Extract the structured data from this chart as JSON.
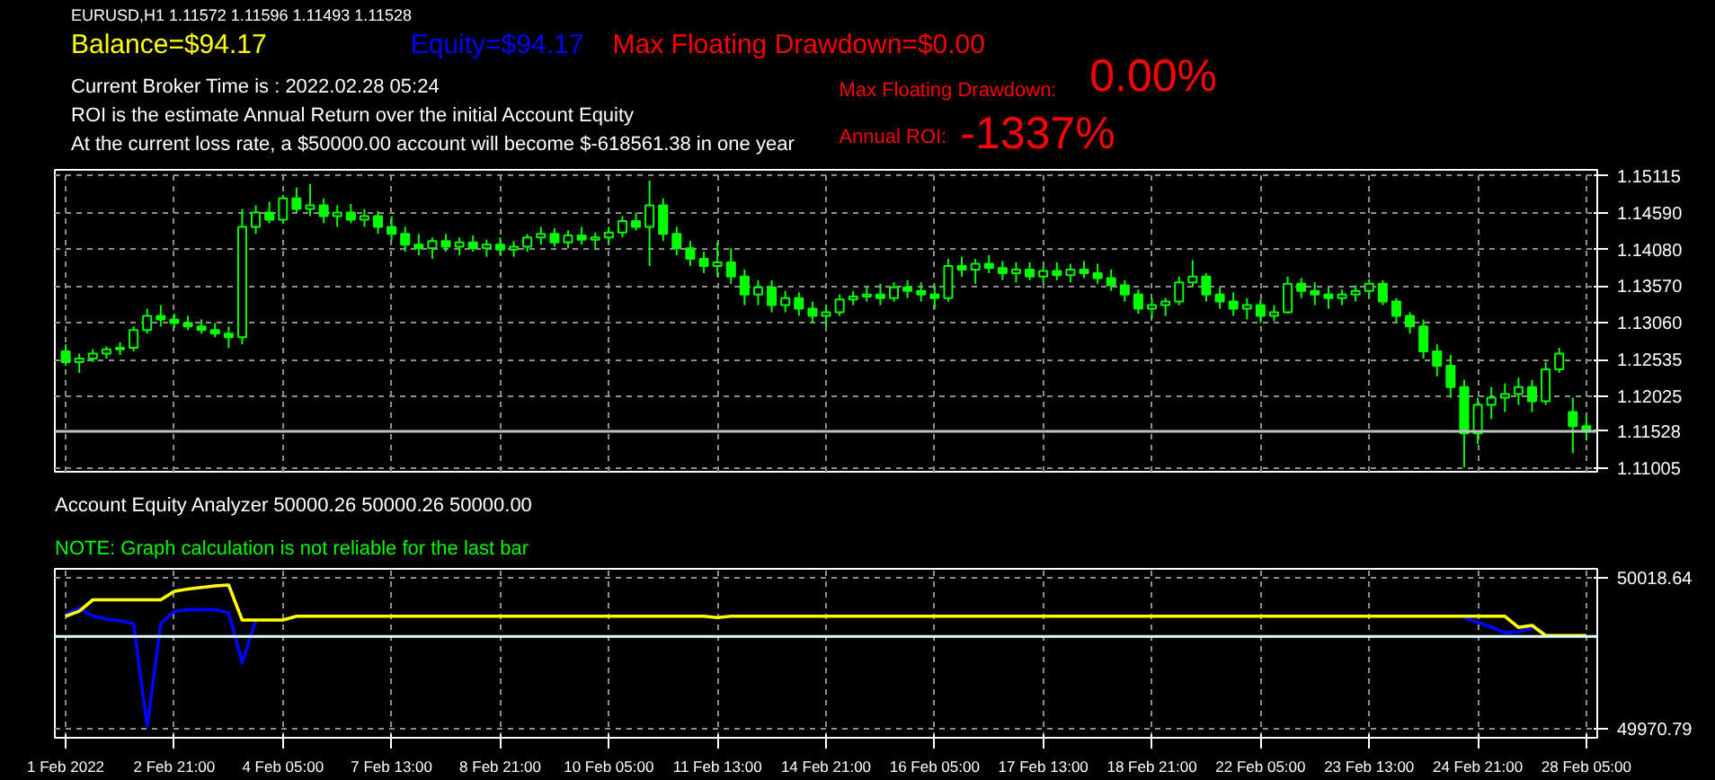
{
  "chart_data": [
    {
      "type": "candlestick",
      "color": "#00ff00",
      "ohlc": [
        [
          1.1265,
          1.1275,
          1.1245,
          1.125
        ],
        [
          1.125,
          1.1262,
          1.1235,
          1.1255
        ],
        [
          1.1255,
          1.1268,
          1.125,
          1.1262
        ],
        [
          1.1262,
          1.1272,
          1.1255,
          1.1268
        ],
        [
          1.1268,
          1.1278,
          1.126,
          1.127
        ],
        [
          1.127,
          1.13,
          1.1265,
          1.1295
        ],
        [
          1.1295,
          1.1325,
          1.129,
          1.1315
        ],
        [
          1.1315,
          1.133,
          1.13,
          1.131
        ],
        [
          1.131,
          1.1318,
          1.1298,
          1.1305
        ],
        [
          1.1305,
          1.1315,
          1.1295,
          1.13
        ],
        [
          1.13,
          1.131,
          1.129,
          1.1295
        ],
        [
          1.1295,
          1.1305,
          1.1285,
          1.129
        ],
        [
          1.129,
          1.13,
          1.127,
          1.1285
        ],
        [
          1.1285,
          1.1465,
          1.1275,
          1.144
        ],
        [
          1.144,
          1.147,
          1.143,
          1.146
        ],
        [
          1.146,
          1.1475,
          1.1445,
          1.145
        ],
        [
          1.145,
          1.1485,
          1.1445,
          1.148
        ],
        [
          1.148,
          1.1495,
          1.146,
          1.1465
        ],
        [
          1.1465,
          1.15,
          1.1455,
          1.147
        ],
        [
          1.147,
          1.148,
          1.1445,
          1.1455
        ],
        [
          1.1455,
          1.147,
          1.144,
          1.146
        ],
        [
          1.146,
          1.1472,
          1.1445,
          1.145
        ],
        [
          1.145,
          1.1465,
          1.144,
          1.1455
        ],
        [
          1.1455,
          1.1462,
          1.143,
          1.144
        ],
        [
          1.144,
          1.1455,
          1.142,
          1.143
        ],
        [
          1.143,
          1.144,
          1.1405,
          1.1415
        ],
        [
          1.1415,
          1.143,
          1.14,
          1.141
        ],
        [
          1.141,
          1.1425,
          1.1395,
          1.142
        ],
        [
          1.142,
          1.143,
          1.1405,
          1.1412
        ],
        [
          1.1412,
          1.1425,
          1.14,
          1.1418
        ],
        [
          1.1418,
          1.1428,
          1.1405,
          1.141
        ],
        [
          1.141,
          1.1422,
          1.1398,
          1.1415
        ],
        [
          1.1415,
          1.1425,
          1.14,
          1.1408
        ],
        [
          1.1408,
          1.142,
          1.1398,
          1.1412
        ],
        [
          1.1412,
          1.143,
          1.1405,
          1.1425
        ],
        [
          1.1425,
          1.144,
          1.1415,
          1.143
        ],
        [
          1.143,
          1.1438,
          1.1412,
          1.1418
        ],
        [
          1.1418,
          1.1435,
          1.141,
          1.1428
        ],
        [
          1.1428,
          1.144,
          1.1415,
          1.1422
        ],
        [
          1.1422,
          1.1432,
          1.141,
          1.1425
        ],
        [
          1.1425,
          1.144,
          1.1418,
          1.1432
        ],
        [
          1.1432,
          1.1455,
          1.1425,
          1.1448
        ],
        [
          1.1448,
          1.146,
          1.1435,
          1.144
        ],
        [
          1.144,
          1.1505,
          1.1385,
          1.147
        ],
        [
          1.147,
          1.148,
          1.142,
          1.143
        ],
        [
          1.143,
          1.144,
          1.14,
          1.141
        ],
        [
          1.141,
          1.142,
          1.1385,
          1.1395
        ],
        [
          1.1395,
          1.1405,
          1.1375,
          1.1385
        ],
        [
          1.1385,
          1.1418,
          1.137,
          1.139
        ],
        [
          1.139,
          1.141,
          1.136,
          1.137
        ],
        [
          1.137,
          1.138,
          1.133,
          1.1345
        ],
        [
          1.1345,
          1.1365,
          1.133,
          1.1355
        ],
        [
          1.1355,
          1.1365,
          1.132,
          1.133
        ],
        [
          1.133,
          1.135,
          1.132,
          1.134
        ],
        [
          1.134,
          1.1348,
          1.1315,
          1.1325
        ],
        [
          1.1325,
          1.1335,
          1.1305,
          1.1315
        ],
        [
          1.1315,
          1.133,
          1.13,
          1.132
        ],
        [
          1.132,
          1.1345,
          1.1315,
          1.1338
        ],
        [
          1.1338,
          1.135,
          1.133,
          1.1342
        ],
        [
          1.1342,
          1.1355,
          1.1335,
          1.1345
        ],
        [
          1.1345,
          1.136,
          1.133,
          1.134
        ],
        [
          1.134,
          1.1362,
          1.1335,
          1.1355
        ],
        [
          1.1355,
          1.1365,
          1.134,
          1.135
        ],
        [
          1.135,
          1.1362,
          1.1335,
          1.1345
        ],
        [
          1.1345,
          1.1358,
          1.1325,
          1.134
        ],
        [
          1.134,
          1.1395,
          1.1335,
          1.1385
        ],
        [
          1.1385,
          1.1398,
          1.137,
          1.138
        ],
        [
          1.138,
          1.1395,
          1.136,
          1.1388
        ],
        [
          1.1388,
          1.14,
          1.1375,
          1.1382
        ],
        [
          1.1382,
          1.1392,
          1.1365,
          1.1375
        ],
        [
          1.1375,
          1.139,
          1.1362,
          1.138
        ],
        [
          1.138,
          1.139,
          1.1365,
          1.137
        ],
        [
          1.137,
          1.1385,
          1.136,
          1.1378
        ],
        [
          1.1378,
          1.139,
          1.1365,
          1.1372
        ],
        [
          1.1372,
          1.1388,
          1.1362,
          1.138
        ],
        [
          1.138,
          1.1392,
          1.1368,
          1.1375
        ],
        [
          1.1375,
          1.1388,
          1.136,
          1.1368
        ],
        [
          1.1368,
          1.138,
          1.135,
          1.1358
        ],
        [
          1.1358,
          1.1365,
          1.1335,
          1.1345
        ],
        [
          1.1345,
          1.1352,
          1.1318,
          1.1325
        ],
        [
          1.1325,
          1.134,
          1.1312,
          1.133
        ],
        [
          1.133,
          1.134,
          1.1315,
          1.1335
        ],
        [
          1.1335,
          1.137,
          1.133,
          1.1362
        ],
        [
          1.1362,
          1.1393,
          1.1355,
          1.137
        ],
        [
          1.137,
          1.1375,
          1.1335,
          1.1345
        ],
        [
          1.1345,
          1.1355,
          1.1325,
          1.1335
        ],
        [
          1.1335,
          1.1348,
          1.1315,
          1.1325
        ],
        [
          1.1325,
          1.134,
          1.131,
          1.133
        ],
        [
          1.133,
          1.1338,
          1.1305,
          1.1315
        ],
        [
          1.1315,
          1.133,
          1.1308,
          1.132
        ],
        [
          1.132,
          1.137,
          1.1318,
          1.136
        ],
        [
          1.136,
          1.1368,
          1.134,
          1.135
        ],
        [
          1.135,
          1.1362,
          1.133,
          1.1345
        ],
        [
          1.1345,
          1.1355,
          1.1325,
          1.134
        ],
        [
          1.134,
          1.1352,
          1.133,
          1.1345
        ],
        [
          1.1345,
          1.1358,
          1.1335,
          1.135
        ],
        [
          1.135,
          1.1366,
          1.134,
          1.136
        ],
        [
          1.136,
          1.1365,
          1.133,
          1.1335
        ],
        [
          1.1335,
          1.134,
          1.1305,
          1.1315
        ],
        [
          1.1315,
          1.132,
          1.129,
          1.13
        ],
        [
          1.13,
          1.131,
          1.1255,
          1.1265
        ],
        [
          1.1265,
          1.1275,
          1.123,
          1.1245
        ],
        [
          1.1245,
          1.126,
          1.12,
          1.1215
        ],
        [
          1.1215,
          1.1225,
          1.1102,
          1.115
        ],
        [
          1.115,
          1.12,
          1.1135,
          1.119
        ],
        [
          1.119,
          1.1215,
          1.117,
          1.12
        ],
        [
          1.12,
          1.122,
          1.118,
          1.1205
        ],
        [
          1.1205,
          1.1228,
          1.119,
          1.1215
        ],
        [
          1.1215,
          1.1225,
          1.118,
          1.1195
        ],
        [
          1.1195,
          1.125,
          1.119,
          1.124
        ],
        [
          1.124,
          1.127,
          1.1235,
          1.1262
        ],
        [
          1.118,
          1.12,
          1.1122,
          1.116
        ],
        [
          1.116,
          1.1175,
          1.114,
          1.11528
        ]
      ],
      "ylim": [
        1.1096,
        1.152
      ],
      "yticks": [
        1.15115,
        {
          "value": 1.1459,
          "label": "1.14590"
        },
        {
          "value": 1.1408,
          "label": "1.14080"
        },
        {
          "value": 1.1357,
          "label": "1.13570"
        },
        {
          "value": 1.1306,
          "label": "1.13060"
        },
        1.12535,
        1.12025,
        1.11005
      ],
      "grid": true,
      "tick_labels": "y",
      "ref_lines": [
        {
          "axis": "y",
          "value": 1.11528,
          "label": "1.11528",
          "color": "#c0c0c0"
        }
      ],
      "annotations": [
        "EURUSD,H1  1.11572 1.11596 1.11493 1.11528",
        "Balance=$94.17",
        "Equity=$94.17",
        "Max Floating Drawdown=$0.00",
        "Current Broker Time is : 2022.02.28 05:24",
        "ROI is the estimate Annual Return over the initial Account Equity",
        "At the current loss rate,  a $50000.00 account will become $-618561.38 in one year",
        "Max Floating Drawdown:",
        "0.00%",
        "Annual ROI:",
        "-1337%"
      ]
    },
    {
      "type": "line",
      "categories": [
        "1 Feb 2022",
        null,
        null,
        null,
        null,
        null,
        null,
        null,
        "2 Feb 21:00",
        null,
        null,
        null,
        null,
        null,
        null,
        null,
        "4 Feb 05:00",
        null,
        null,
        null,
        null,
        null,
        null,
        null,
        "7 Feb 13:00",
        null,
        null,
        null,
        null,
        null,
        null,
        null,
        "8 Feb 21:00",
        null,
        null,
        null,
        null,
        null,
        null,
        null,
        "10 Feb 05:00",
        null,
        null,
        null,
        null,
        null,
        null,
        null,
        "11 Feb 13:00",
        null,
        null,
        null,
        null,
        null,
        null,
        null,
        "14 Feb 21:00",
        null,
        null,
        null,
        null,
        null,
        null,
        null,
        "16 Feb 05:00",
        null,
        null,
        null,
        null,
        null,
        null,
        null,
        "17 Feb 13:00",
        null,
        null,
        null,
        null,
        null,
        null,
        null,
        "18 Feb 21:00",
        null,
        null,
        null,
        null,
        null,
        null,
        null,
        "22 Feb 05:00",
        null,
        null,
        null,
        null,
        null,
        null,
        null,
        "23 Feb 13:00",
        null,
        null,
        null,
        null,
        null,
        null,
        null,
        "24 Feb 21:00",
        null,
        null,
        null,
        null,
        null,
        null,
        null,
        "28 Feb 05:00"
      ],
      "series": [
        {
          "color": "#0000ff",
          "values": [
            50007.0,
            50009.0,
            50006.5,
            50005.5,
            50005.0,
            50004.0,
            49971.7,
            50004.0,
            50008.0,
            50008.5,
            50008.5,
            50008.5,
            50007.5,
            49991.7,
            50005.2,
            null,
            null,
            null,
            null,
            null,
            null,
            null,
            null,
            null,
            null,
            null,
            null,
            null,
            null,
            null,
            null,
            null,
            null,
            null,
            null,
            null,
            null,
            null,
            null,
            null,
            null,
            null,
            null,
            null,
            null,
            null,
            null,
            null,
            null,
            null,
            null,
            null,
            null,
            null,
            null,
            null,
            null,
            null,
            null,
            null,
            null,
            null,
            null,
            null,
            null,
            null,
            null,
            null,
            null,
            null,
            null,
            null,
            null,
            null,
            null,
            null,
            null,
            null,
            null,
            null,
            null,
            null,
            null,
            null,
            null,
            null,
            null,
            null,
            null,
            null,
            null,
            null,
            null,
            null,
            null,
            null,
            null,
            null,
            null,
            null,
            null,
            null,
            null,
            50006.0,
            50004.5,
            50003.0,
            50001.2,
            50001.5,
            50002.5,
            null,
            null,
            null,
            null
          ]
        },
        {
          "color": "#ffff00",
          "values": [
            50006.4,
            50008.0,
            50011.6,
            50011.6,
            50011.6,
            50011.6,
            50011.6,
            50011.6,
            50014.3,
            50015.0,
            50015.5,
            50016.0,
            50016.3,
            50005.2,
            50005.2,
            50005.2,
            50005.2,
            50006.4,
            50006.4,
            50006.4,
            50006.4,
            50006.4,
            50006.4,
            50006.4,
            50006.4,
            50006.4,
            50006.4,
            50006.4,
            50006.4,
            50006.4,
            50006.4,
            50006.4,
            50006.4,
            50006.4,
            50006.4,
            50006.4,
            50006.4,
            50006.4,
            50006.4,
            50006.4,
            50006.4,
            50006.4,
            50006.4,
            50006.4,
            50006.4,
            50006.4,
            50006.4,
            50006.4,
            50006.0,
            50006.4,
            50006.4,
            50006.4,
            50006.4,
            50006.4,
            50006.4,
            50006.4,
            50006.4,
            50006.4,
            50006.4,
            50006.4,
            50006.4,
            50006.4,
            50006.4,
            50006.4,
            50006.4,
            50006.4,
            50006.4,
            50006.4,
            50006.4,
            50006.4,
            50006.4,
            50006.4,
            50006.4,
            50006.4,
            50006.4,
            50006.4,
            50006.4,
            50006.4,
            50006.4,
            50006.4,
            50006.4,
            50006.4,
            50006.4,
            50006.4,
            50006.4,
            50006.4,
            50006.4,
            50006.4,
            50006.4,
            50006.4,
            50006.4,
            50006.4,
            50006.4,
            50006.4,
            50006.4,
            50006.4,
            50006.4,
            50006.4,
            50006.4,
            50006.4,
            50006.4,
            50006.4,
            50006.4,
            50006.4,
            50006.4,
            50006.4,
            50006.4,
            50002.9,
            50003.5,
            50000.3,
            50000.3,
            50000.3,
            50000.3
          ]
        }
      ],
      "ylim": [
        49968.0,
        50021.4
      ],
      "yticks": [
        50018.64,
        49970.79
      ],
      "grid": true,
      "ref_lines": [
        {
          "axis": "y",
          "value": 50000.0,
          "color": "#e0ffff"
        }
      ],
      "annotations": [
        "Account Equity Analyzer 50000.26 50000.26 50000.00",
        "NOTE: Graph calculation is not reliable for the last bar"
      ]
    }
  ]
}
